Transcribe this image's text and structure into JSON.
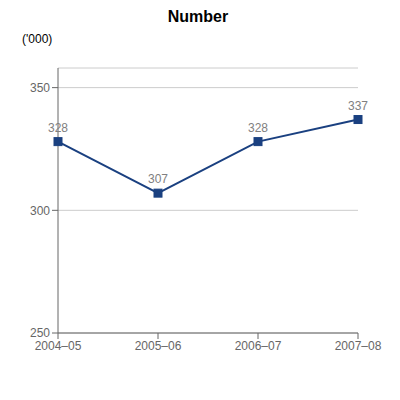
{
  "chart_data": {
    "type": "line",
    "title": "Number",
    "ylabel": "('000)",
    "categories": [
      "2004–05",
      "2005–06",
      "2006–07",
      "2007–08"
    ],
    "values": [
      328,
      307,
      328,
      337
    ],
    "color": "#1a4080",
    "marker": "square",
    "ylim": [
      250,
      358
    ],
    "yticks": [
      250,
      300,
      350
    ],
    "grid": true,
    "data_labels": true
  }
}
